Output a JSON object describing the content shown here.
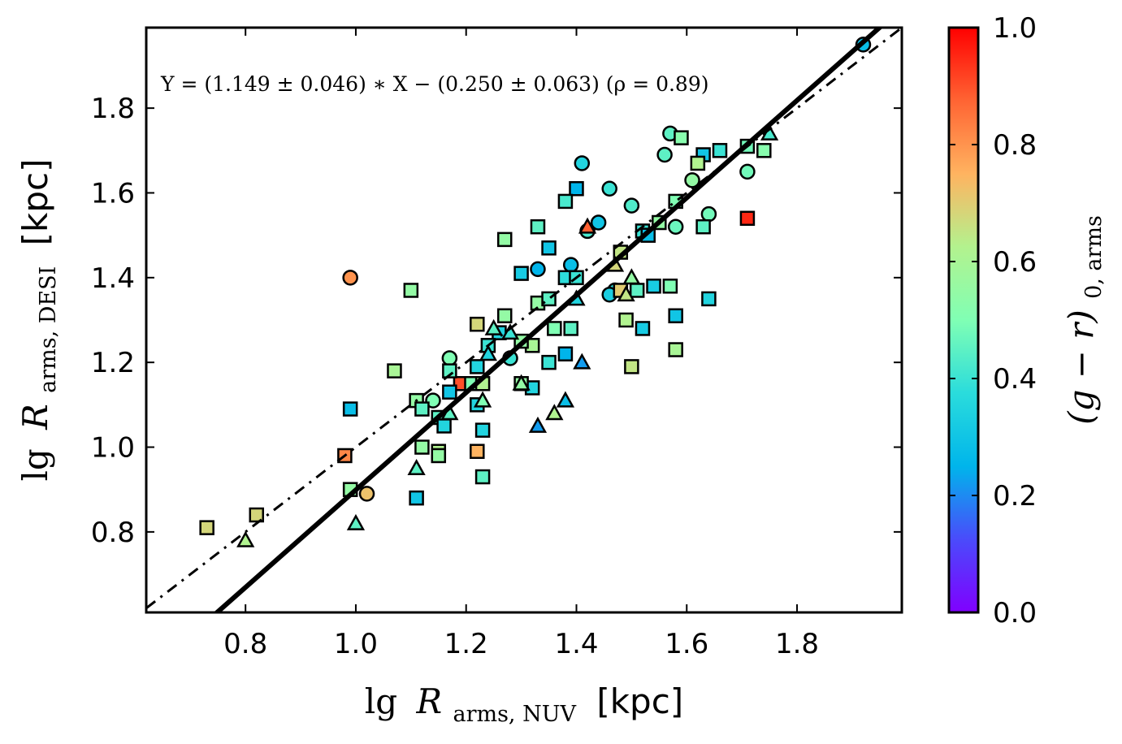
{
  "chart_data": {
    "type": "scatter",
    "title": "",
    "xlabel": {
      "lg": "lg",
      "sym": "R",
      "sub": "arms, NUV",
      "unit": "[kpc]"
    },
    "ylabel": {
      "lg": "lg",
      "sym": "R",
      "sub": "arms, DESI",
      "unit": "[kpc]"
    },
    "xlim": [
      0.62,
      1.99
    ],
    "ylim": [
      0.61,
      1.99
    ],
    "xticks": [
      {
        "v": 0.8,
        "label": "0.8"
      },
      {
        "v": 1.0,
        "label": "1.0"
      },
      {
        "v": 1.2,
        "label": "1.2"
      },
      {
        "v": 1.4,
        "label": "1.4"
      },
      {
        "v": 1.6,
        "label": "1.6"
      },
      {
        "v": 1.8,
        "label": "1.8"
      }
    ],
    "yticks": [
      {
        "v": 0.8,
        "label": "0.8"
      },
      {
        "v": 1.0,
        "label": "1.0"
      },
      {
        "v": 1.2,
        "label": "1.2"
      },
      {
        "v": 1.4,
        "label": "1.4"
      },
      {
        "v": 1.6,
        "label": "1.6"
      },
      {
        "v": 1.8,
        "label": "1.8"
      }
    ],
    "annotation": "Y = (1.149 ± 0.046) ∗ X − (0.250 ± 0.063) (ρ = 0.89)",
    "fit_line": {
      "slope": 1.149,
      "intercept": -0.25
    },
    "one_to_one_line": {
      "slope": 1,
      "intercept": 0
    },
    "colorbar": {
      "label": "(g − r)",
      "label_sub": "0, arms",
      "range": [
        0.0,
        1.0
      ],
      "ticks": [
        {
          "v": 0.0,
          "label": "0.0"
        },
        {
          "v": 0.2,
          "label": "0.2"
        },
        {
          "v": 0.4,
          "label": "0.4"
        },
        {
          "v": 0.6,
          "label": "0.6"
        },
        {
          "v": 0.8,
          "label": "0.8"
        },
        {
          "v": 1.0,
          "label": "1.0"
        }
      ],
      "colormap": "rainbow"
    },
    "series": [
      {
        "name": "circle",
        "marker": "circle",
        "points": [
          [
            1.92,
            1.95,
            0.28
          ],
          [
            1.57,
            1.74,
            0.45
          ],
          [
            1.56,
            1.69,
            0.45
          ],
          [
            1.61,
            1.63,
            0.55
          ],
          [
            1.64,
            1.55,
            0.48
          ],
          [
            1.58,
            1.52,
            0.47
          ],
          [
            1.71,
            1.65,
            0.48
          ],
          [
            1.41,
            1.67,
            0.35
          ],
          [
            1.46,
            1.61,
            0.4
          ],
          [
            1.5,
            1.57,
            0.43
          ],
          [
            1.44,
            1.53,
            0.3
          ],
          [
            1.42,
            1.51,
            0.42
          ],
          [
            1.33,
            1.42,
            0.25
          ],
          [
            1.39,
            1.43,
            0.28
          ],
          [
            1.47,
            1.37,
            0.38
          ],
          [
            1.46,
            1.36,
            0.33
          ],
          [
            1.17,
            1.21,
            0.5
          ],
          [
            1.28,
            1.21,
            0.4
          ],
          [
            1.14,
            1.11,
            0.5
          ],
          [
            0.99,
            1.4,
            0.8
          ],
          [
            1.02,
            0.89,
            0.72
          ]
        ]
      },
      {
        "name": "square",
        "marker": "square",
        "points": [
          [
            1.63,
            1.69,
            0.3
          ],
          [
            1.66,
            1.7,
            0.4
          ],
          [
            1.59,
            1.73,
            0.52
          ],
          [
            1.62,
            1.67,
            0.62
          ],
          [
            1.71,
            1.71,
            0.48
          ],
          [
            1.74,
            1.7,
            0.52
          ],
          [
            1.71,
            1.54,
            0.95
          ],
          [
            1.63,
            1.52,
            0.45
          ],
          [
            1.52,
            1.51,
            0.4
          ],
          [
            1.53,
            1.5,
            0.28
          ],
          [
            1.55,
            1.53,
            0.55
          ],
          [
            1.58,
            1.58,
            0.5
          ],
          [
            1.4,
            1.61,
            0.25
          ],
          [
            1.38,
            1.58,
            0.42
          ],
          [
            1.35,
            1.47,
            0.3
          ],
          [
            1.33,
            1.52,
            0.45
          ],
          [
            1.27,
            1.49,
            0.55
          ],
          [
            1.3,
            1.41,
            0.32
          ],
          [
            1.38,
            1.4,
            0.38
          ],
          [
            1.4,
            1.4,
            0.4
          ],
          [
            1.48,
            1.46,
            0.65
          ],
          [
            1.48,
            1.37,
            0.7
          ],
          [
            1.51,
            1.37,
            0.45
          ],
          [
            1.54,
            1.38,
            0.32
          ],
          [
            1.57,
            1.38,
            0.5
          ],
          [
            1.64,
            1.35,
            0.35
          ],
          [
            1.58,
            1.31,
            0.3
          ],
          [
            1.52,
            1.28,
            0.32
          ],
          [
            1.49,
            1.3,
            0.62
          ],
          [
            1.58,
            1.23,
            0.6
          ],
          [
            1.5,
            1.19,
            0.65
          ],
          [
            1.1,
            1.37,
            0.55
          ],
          [
            1.07,
            1.18,
            0.6
          ],
          [
            1.33,
            1.34,
            0.55
          ],
          [
            1.35,
            1.35,
            0.45
          ],
          [
            1.36,
            1.28,
            0.5
          ],
          [
            1.39,
            1.28,
            0.45
          ],
          [
            1.38,
            1.22,
            0.25
          ],
          [
            1.35,
            1.2,
            0.4
          ],
          [
            1.32,
            1.24,
            0.6
          ],
          [
            1.3,
            1.25,
            0.55
          ],
          [
            1.27,
            1.31,
            0.55
          ],
          [
            1.26,
            1.27,
            0.35
          ],
          [
            1.24,
            1.24,
            0.4
          ],
          [
            1.22,
            1.29,
            0.68
          ],
          [
            1.22,
            1.19,
            0.35
          ],
          [
            1.19,
            1.15,
            0.9
          ],
          [
            1.21,
            1.15,
            0.5
          ],
          [
            1.23,
            1.15,
            0.62
          ],
          [
            1.17,
            1.18,
            0.45
          ],
          [
            1.17,
            1.13,
            0.3
          ],
          [
            1.22,
            1.1,
            0.35
          ],
          [
            1.23,
            1.04,
            0.35
          ],
          [
            1.22,
            0.99,
            0.75
          ],
          [
            1.23,
            0.93,
            0.45
          ],
          [
            1.32,
            1.14,
            0.35
          ],
          [
            1.3,
            1.15,
            0.55
          ],
          [
            1.11,
            1.11,
            0.55
          ],
          [
            1.12,
            1.09,
            0.45
          ],
          [
            1.15,
            1.07,
            0.45
          ],
          [
            1.16,
            1.05,
            0.35
          ],
          [
            1.12,
            1.0,
            0.55
          ],
          [
            1.15,
            0.99,
            0.62
          ],
          [
            1.15,
            0.98,
            0.55
          ],
          [
            1.11,
            0.88,
            0.3
          ],
          [
            0.99,
            1.09,
            0.28
          ],
          [
            0.98,
            0.98,
            0.82
          ],
          [
            0.99,
            0.9,
            0.55
          ],
          [
            0.82,
            0.84,
            0.68
          ],
          [
            0.73,
            0.81,
            0.68
          ]
        ]
      },
      {
        "name": "triangle",
        "marker": "triangle",
        "points": [
          [
            1.75,
            1.74,
            0.42
          ],
          [
            1.42,
            1.52,
            0.88
          ],
          [
            1.47,
            1.43,
            0.68
          ],
          [
            1.5,
            1.4,
            0.55
          ],
          [
            1.49,
            1.36,
            0.65
          ],
          [
            1.4,
            1.35,
            0.35
          ],
          [
            1.41,
            1.2,
            0.22
          ],
          [
            1.38,
            1.11,
            0.28
          ],
          [
            1.36,
            1.08,
            0.62
          ],
          [
            1.33,
            1.05,
            0.22
          ],
          [
            1.3,
            1.15,
            0.55
          ],
          [
            1.24,
            1.22,
            0.35
          ],
          [
            1.23,
            1.11,
            0.5
          ],
          [
            1.17,
            1.08,
            0.45
          ],
          [
            1.11,
            0.95,
            0.45
          ],
          [
            1.0,
            0.82,
            0.45
          ],
          [
            0.8,
            0.78,
            0.62
          ],
          [
            1.25,
            1.28,
            0.45
          ],
          [
            1.28,
            1.27,
            0.4
          ]
        ]
      }
    ]
  }
}
